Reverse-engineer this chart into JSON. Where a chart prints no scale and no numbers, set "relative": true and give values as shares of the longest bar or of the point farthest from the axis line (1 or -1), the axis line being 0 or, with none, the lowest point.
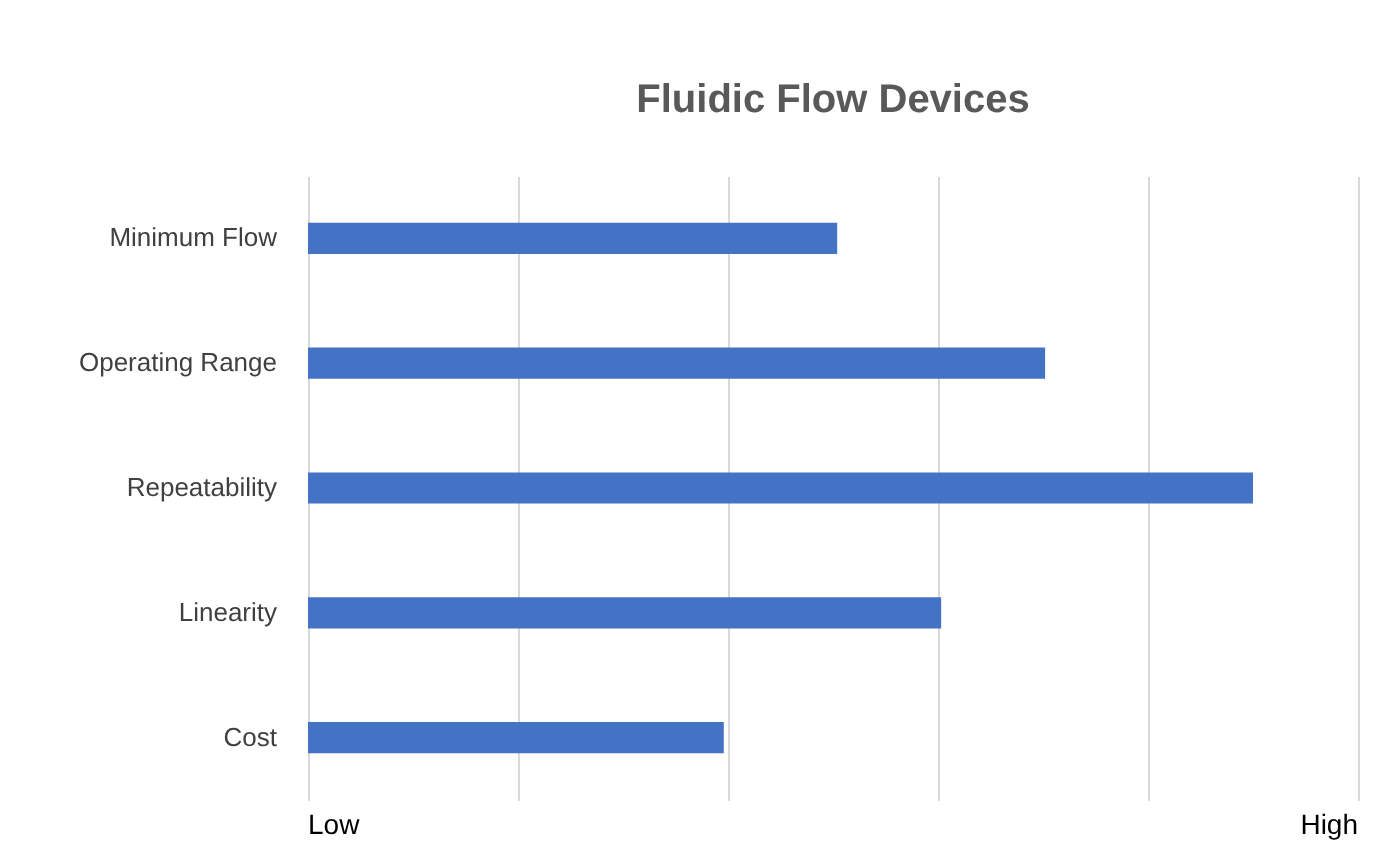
{
  "chart_data": {
    "type": "bar",
    "orientation": "horizontal",
    "title": "Fluidic Flow Devices",
    "relative": true,
    "categories": [
      "Minimum Flow",
      "Operating Range",
      "Repeatability",
      "Linearity",
      "Cost"
    ],
    "values": [
      0.56,
      0.78,
      1,
      0.67,
      0.44
    ],
    "color": "#4472c4",
    "annotations": [
      "Low",
      "High"
    ],
    "grid": true
  }
}
